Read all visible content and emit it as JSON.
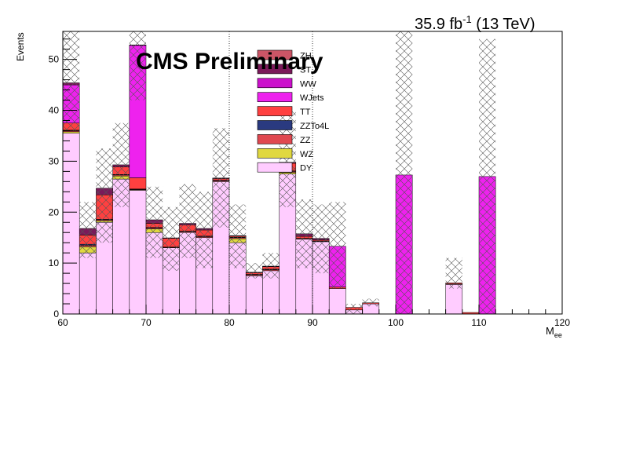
{
  "header": {
    "lumi": "35.9 fb",
    "lumi_exp": "-1",
    "energy": " (13 TeV)",
    "label": "CMS Preliminary"
  },
  "chart_data": {
    "type": "bar",
    "stacked": true,
    "ylabel": "Events",
    "xlabel_main": "M",
    "xlabel_sub": "ee",
    "xlim": [
      60,
      120
    ],
    "ylim": [
      0,
      55.5
    ],
    "x_ticks": [
      60,
      70,
      80,
      90,
      100,
      110,
      120
    ],
    "y_ticks": [
      0,
      10,
      20,
      30,
      40,
      50
    ],
    "vertical_lines": [
      80,
      90
    ],
    "bin_edges": [
      60,
      62,
      64,
      66,
      68,
      70,
      72,
      74,
      76,
      78,
      80,
      82,
      84,
      86,
      88,
      90,
      92,
      94,
      96,
      98,
      100,
      102,
      104,
      106,
      108,
      110,
      112,
      114,
      116,
      118,
      120
    ],
    "series": [
      {
        "name": "DY",
        "color": "#ffccff",
        "values": [
          35.5,
          12,
          18,
          26.5,
          24.3,
          16,
          13,
          16,
          15,
          26,
          14,
          7.5,
          8.5,
          27.5,
          14.7,
          14.2,
          5,
          0.8,
          2,
          0,
          0,
          0,
          0,
          5.8,
          0,
          0,
          0,
          0,
          0,
          0
        ]
      },
      {
        "name": "WZ",
        "color": "#e0d840",
        "values": [
          0.3,
          1.2,
          0.3,
          0.6,
          0.1,
          0.7,
          0,
          0,
          0,
          0,
          0.8,
          0,
          0,
          0.3,
          0,
          0,
          0,
          0,
          0,
          0,
          0,
          0,
          0,
          0,
          0,
          0,
          0,
          0,
          0,
          0
        ]
      },
      {
        "name": "ZZ",
        "color": "#e04850",
        "values": [
          0.2,
          0.3,
          0.2,
          0.2,
          0.1,
          0.2,
          0.1,
          0.2,
          0.2,
          0.2,
          0.2,
          0.2,
          0.2,
          0.2,
          0.1,
          0.1,
          0,
          0,
          0,
          0,
          0,
          0,
          0,
          0.1,
          0,
          0,
          0,
          0,
          0,
          0
        ]
      },
      {
        "name": "ZZTo4L",
        "color": "#2a3a80",
        "values": [
          0.1,
          0.2,
          0.1,
          0.1,
          0.05,
          0.1,
          0.05,
          0.1,
          0.1,
          0.1,
          0.1,
          0.1,
          0.1,
          0.1,
          0.05,
          0.05,
          0,
          0,
          0,
          0,
          0,
          0,
          0,
          0,
          0,
          0,
          0,
          0,
          0,
          0
        ]
      },
      {
        "name": "TT",
        "color": "#ff4040",
        "values": [
          1.4,
          1.8,
          4.8,
          1.5,
          2.2,
          0.8,
          1.7,
          1.2,
          1.2,
          0.3,
          0.2,
          0.3,
          0.5,
          1.5,
          0.4,
          0.2,
          0.3,
          0.5,
          0.2,
          0,
          0,
          0,
          0,
          0.2,
          0.3,
          0,
          0,
          0,
          0,
          0
        ]
      },
      {
        "name": "WJets",
        "color": "#ee22ee",
        "values": [
          7.5,
          0,
          0,
          0,
          26,
          0,
          0,
          0,
          0,
          0,
          0,
          0,
          0,
          0,
          0,
          0,
          8,
          0,
          0,
          0,
          27.3,
          0,
          0,
          0,
          0,
          27,
          0,
          0,
          0,
          0
        ]
      },
      {
        "name": "WW",
        "color": "#cc11cc",
        "values": [
          0,
          0,
          0,
          0,
          0,
          0,
          0,
          0,
          0,
          0,
          0,
          0,
          0,
          0,
          0,
          0,
          0,
          0,
          0,
          0,
          0,
          0,
          0,
          0,
          0,
          0,
          0,
          0,
          0,
          0
        ]
      },
      {
        "name": "ST",
        "color": "#7a1a5a",
        "values": [
          0.4,
          1.3,
          1.3,
          0.4,
          0.1,
          0.7,
          0.1,
          0.3,
          0.3,
          0.1,
          0.1,
          0.1,
          0.1,
          0.2,
          0.5,
          0.3,
          0,
          0,
          0,
          0,
          0,
          0,
          0,
          0,
          0,
          0,
          0,
          0,
          0,
          0
        ]
      },
      {
        "name": "ZH",
        "color": "#cc5566",
        "values": [
          0,
          0,
          0,
          0,
          0,
          0,
          0,
          0,
          0,
          0,
          0,
          0,
          0,
          0,
          0,
          0,
          0,
          0,
          0,
          0,
          0,
          0,
          0,
          0,
          0,
          0,
          0,
          0,
          0,
          0
        ]
      }
    ],
    "uncertainty": {
      "up": [
        56,
        22,
        32.5,
        37.5,
        56,
        25,
        21,
        25.5,
        24,
        36.5,
        21.5,
        10,
        12,
        40,
        22.5,
        21.5,
        22,
        2,
        3,
        0,
        56,
        0,
        0,
        11,
        0,
        54,
        0,
        0,
        0,
        0
      ],
      "down": [
        36,
        11,
        14,
        21,
        42,
        11,
        8.5,
        11,
        9,
        17,
        9,
        7,
        7,
        21,
        9,
        8,
        5,
        0,
        1.5,
        0,
        0,
        0,
        0,
        5,
        0,
        0,
        0,
        0,
        0,
        0
      ]
    },
    "legend": [
      {
        "name": "ZH",
        "color": "#cc5566"
      },
      {
        "name": "ST",
        "color": "#7a1a5a"
      },
      {
        "name": "WW",
        "color": "#cc11cc"
      },
      {
        "name": "WJets",
        "color": "#ee22ee"
      },
      {
        "name": "TT",
        "color": "#ff4040"
      },
      {
        "name": "ZZTo4L",
        "color": "#2a3a80"
      },
      {
        "name": "ZZ",
        "color": "#e04850"
      },
      {
        "name": "WZ",
        "color": "#e0d840"
      },
      {
        "name": "DY",
        "color": "#ffccff"
      }
    ],
    "legend_position": "top-center"
  }
}
